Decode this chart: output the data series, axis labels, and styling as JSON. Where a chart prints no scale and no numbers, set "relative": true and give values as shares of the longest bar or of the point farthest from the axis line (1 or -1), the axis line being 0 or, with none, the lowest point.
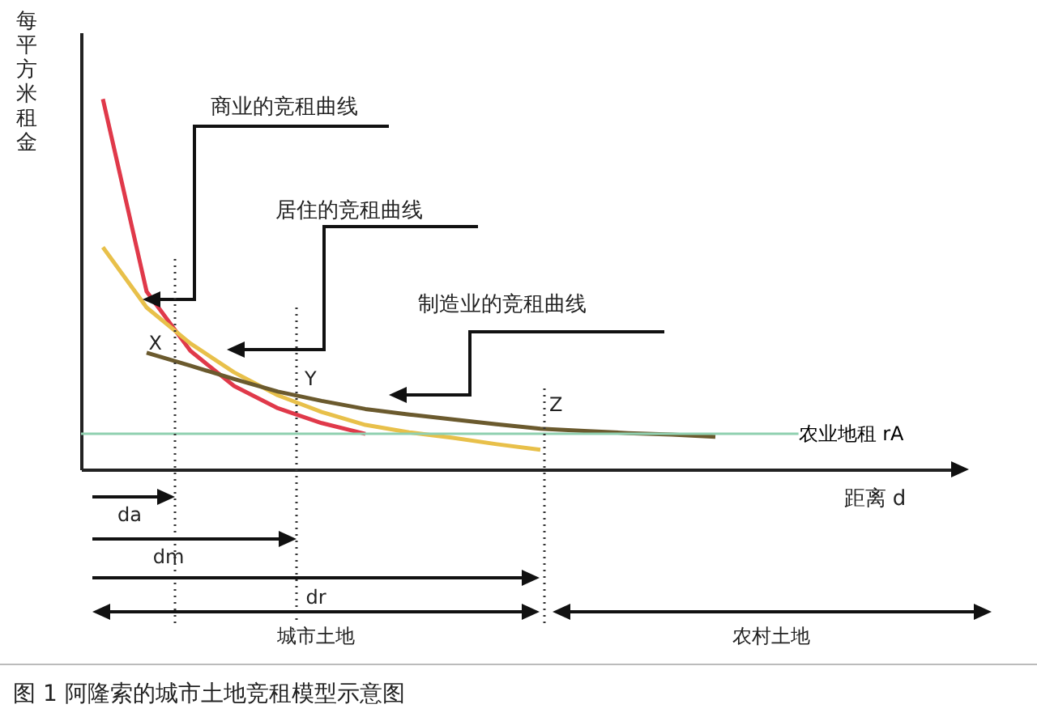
{
  "chart_data": {
    "type": "line",
    "title": "图 1 阿隆索的城市土地竞租模型示意图",
    "xlabel": "距离 d",
    "ylabel": "每平方米租金",
    "relative": true,
    "tick_labels": false,
    "marker": "none",
    "line_style": "solid",
    "categories": [
      null,
      null,
      null,
      null,
      null,
      null,
      null,
      null,
      null,
      null,
      null,
      null,
      null,
      null,
      null,
      null,
      null,
      null,
      null,
      null
    ],
    "series": [
      {
        "name": "商业的竞租曲线",
        "color": "#e0394a",
        "values": [
          1.0,
          0.48,
          0.32,
          0.225,
          0.165,
          0.125,
          0.096,
          null,
          null,
          null,
          null,
          null,
          null,
          null,
          null,
          null,
          null,
          null,
          null,
          null
        ]
      },
      {
        "name": "居住的竞租曲线",
        "color": "#e8c04a",
        "values": [
          0.6,
          0.437,
          0.34,
          0.262,
          0.2,
          0.155,
          0.12,
          0.1,
          0.085,
          0.068,
          0.053,
          null,
          null,
          null,
          null,
          null,
          null,
          null,
          null,
          null
        ]
      },
      {
        "name": "制造业的竞租曲线",
        "color": "#6b5a2e",
        "values": [
          null,
          0.315,
          0.28,
          0.244,
          0.21,
          0.185,
          0.163,
          0.148,
          0.135,
          0.122,
          0.11,
          0.104,
          0.098,
          0.094,
          0.088,
          null,
          null,
          null,
          null,
          null
        ]
      }
    ],
    "ref_lines": [
      {
        "axis": "y",
        "value": 0.096,
        "label": "农业地租 rA",
        "color": "#8fd0b0"
      }
    ],
    "annotations": [
      "X",
      "Y",
      "Z",
      "da",
      "dm",
      "dr",
      "城市土地",
      "农村土地"
    ]
  }
}
